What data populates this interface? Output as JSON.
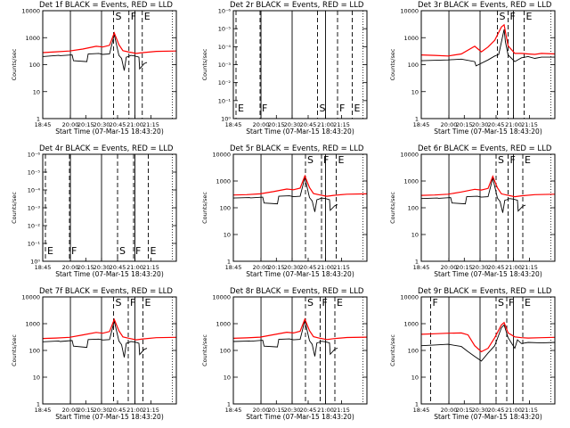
{
  "time_ticks": [
    "18:45",
    "20:00",
    "20:15",
    "20:30",
    "20:45",
    "21:00",
    "21:15"
  ],
  "xlabel": "Start Time (07-Mar-15 18:43:20)",
  "ylabel": "Counts/sec",
  "colors": {
    "events": "#000000",
    "lld": "#ff0000"
  },
  "chart_data": [
    {
      "type": "line",
      "title": "Det 1f BLACK = Events, RED = LLD",
      "scale": "log",
      "yticks": [
        "1",
        "10",
        "100",
        "1000",
        "10000"
      ],
      "ylim": [
        1,
        10000
      ],
      "markers": [
        {
          "label": "S",
          "x": 0.53
        },
        {
          "label": "F",
          "x": 0.645
        },
        {
          "label": "E",
          "x": 0.745
        }
      ],
      "series": [
        {
          "color": "#000000",
          "x": [
            0.0,
            0.12,
            0.13,
            0.22,
            0.23,
            0.33,
            0.34,
            0.42,
            0.45,
            0.5,
            0.535,
            0.57,
            0.59,
            0.61,
            0.625,
            0.64,
            0.66,
            0.69,
            0.72,
            0.725,
            0.76,
            0.78
          ],
          "y": [
            200,
            220,
            215,
            230,
            140,
            130,
            250,
            260,
            240,
            250,
            1300,
            220,
            170,
            60,
            190,
            200,
            220,
            210,
            190,
            70,
            110,
            120
          ]
        },
        {
          "color": "#ff0000",
          "x": [
            0.0,
            0.1,
            0.2,
            0.3,
            0.4,
            0.45,
            0.5,
            0.535,
            0.57,
            0.6,
            0.65,
            0.7,
            0.75,
            0.85,
            1.0
          ],
          "y": [
            280,
            300,
            320,
            380,
            480,
            450,
            520,
            1500,
            550,
            330,
            290,
            260,
            280,
            310,
            320
          ]
        }
      ]
    },
    {
      "type": "line",
      "title": "Det 2r BLACK = Events, RED = LLD",
      "scale": "log-exp",
      "yticks": [
        "10⁰",
        "10⁻¹",
        "10⁻²",
        "10⁻³",
        "10⁻⁴",
        "10⁻⁵",
        "10⁻⁶"
      ],
      "ylim": [
        1,
        1e-06
      ],
      "markers": [
        {
          "label": "E",
          "x": 0.02
        },
        {
          "label": "F",
          "x": 0.2
        },
        {
          "label": "S",
          "x": 0.63
        },
        {
          "label": "F",
          "x": 0.78
        },
        {
          "label": "E",
          "x": 0.89
        }
      ],
      "series": []
    },
    {
      "type": "line",
      "title": "Det 3r BLACK = Events, RED = LLD",
      "scale": "log",
      "yticks": [
        "1",
        "10",
        "100",
        "1000",
        "10000"
      ],
      "ylim": [
        1,
        10000
      ],
      "markers": [
        {
          "label": "S",
          "x": 0.57
        },
        {
          "label": "F",
          "x": 0.65
        },
        {
          "label": "E",
          "x": 0.77
        }
      ],
      "series": [
        {
          "color": "#000000",
          "x": [
            0.0,
            0.2,
            0.3,
            0.4,
            0.41,
            0.5,
            0.55,
            0.58,
            0.62,
            0.63,
            0.65,
            0.7,
            0.75,
            0.8,
            0.85,
            0.9,
            1.0
          ],
          "y": [
            140,
            150,
            160,
            130,
            90,
            150,
            210,
            240,
            2000,
            700,
            230,
            130,
            180,
            200,
            170,
            190,
            190
          ]
        },
        {
          "color": "#ff0000",
          "x": [
            0.0,
            0.1,
            0.2,
            0.3,
            0.4,
            0.45,
            0.5,
            0.55,
            0.6,
            0.62,
            0.65,
            0.7,
            0.75,
            0.8,
            0.85,
            0.9,
            1.0
          ],
          "y": [
            230,
            220,
            210,
            250,
            480,
            300,
            450,
            800,
            2500,
            3000,
            500,
            260,
            260,
            250,
            240,
            260,
            250
          ]
        }
      ]
    },
    {
      "type": "line",
      "title": "Det 4r BLACK = Events, RED = LLD",
      "scale": "log-exp",
      "yticks": [
        "10⁰",
        "10⁻¹",
        "10⁻²",
        "10⁻³",
        "10⁻⁴",
        "10⁻⁵",
        "10⁻⁶"
      ],
      "ylim": [
        1,
        1e-06
      ],
      "markers": [
        {
          "label": "E",
          "x": 0.02
        },
        {
          "label": "F",
          "x": 0.2
        },
        {
          "label": "S",
          "x": 0.56
        },
        {
          "label": "F",
          "x": 0.68
        },
        {
          "label": "E",
          "x": 0.79
        }
      ],
      "series": []
    },
    {
      "type": "line",
      "title": "Det 5r BLACK = Events, RED = LLD",
      "scale": "log",
      "yticks": [
        "1",
        "10",
        "100",
        "1000",
        "10000"
      ],
      "ylim": [
        1,
        10000
      ],
      "markers": [
        {
          "label": "S",
          "x": 0.54
        },
        {
          "label": "F",
          "x": 0.66
        },
        {
          "label": "E",
          "x": 0.77
        }
      ],
      "series": [
        {
          "color": "#000000",
          "x": [
            0.0,
            0.12,
            0.13,
            0.22,
            0.23,
            0.33,
            0.34,
            0.42,
            0.45,
            0.5,
            0.535,
            0.57,
            0.59,
            0.61,
            0.625,
            0.64,
            0.66,
            0.69,
            0.72,
            0.725,
            0.76,
            0.78
          ],
          "y": [
            230,
            240,
            235,
            250,
            150,
            140,
            270,
            280,
            260,
            270,
            1350,
            240,
            180,
            70,
            200,
            210,
            230,
            220,
            200,
            80,
            120,
            130
          ]
        },
        {
          "color": "#ff0000",
          "x": [
            0.0,
            0.1,
            0.2,
            0.3,
            0.4,
            0.45,
            0.5,
            0.535,
            0.57,
            0.6,
            0.65,
            0.7,
            0.75,
            0.85,
            1.0
          ],
          "y": [
            300,
            310,
            330,
            400,
            500,
            470,
            540,
            1550,
            570,
            340,
            300,
            270,
            290,
            320,
            330
          ]
        }
      ]
    },
    {
      "type": "line",
      "title": "Det 6r BLACK = Events, RED = LLD",
      "scale": "log",
      "yticks": [
        "1",
        "10",
        "100",
        "1000",
        "10000"
      ],
      "ylim": [
        1,
        10000
      ],
      "markers": [
        {
          "label": "S",
          "x": 0.56
        },
        {
          "label": "F",
          "x": 0.65
        },
        {
          "label": "E",
          "x": 0.76
        }
      ],
      "series": [
        {
          "color": "#000000",
          "x": [
            0.0,
            0.12,
            0.13,
            0.22,
            0.23,
            0.33,
            0.34,
            0.42,
            0.45,
            0.5,
            0.535,
            0.57,
            0.59,
            0.61,
            0.625,
            0.64,
            0.66,
            0.69,
            0.72,
            0.725,
            0.76,
            0.78
          ],
          "y": [
            220,
            230,
            225,
            240,
            150,
            140,
            260,
            270,
            250,
            260,
            1300,
            230,
            170,
            65,
            190,
            200,
            220,
            210,
            190,
            75,
            115,
            125
          ]
        },
        {
          "color": "#ff0000",
          "x": [
            0.0,
            0.1,
            0.2,
            0.3,
            0.4,
            0.45,
            0.5,
            0.535,
            0.57,
            0.6,
            0.65,
            0.7,
            0.75,
            0.85,
            1.0
          ],
          "y": [
            290,
            300,
            320,
            390,
            490,
            460,
            530,
            1500,
            560,
            330,
            290,
            260,
            280,
            310,
            320
          ]
        }
      ]
    },
    {
      "type": "line",
      "title": "Det 7f BLACK = Events, RED = LLD",
      "scale": "log",
      "yticks": [
        "1",
        "10",
        "100",
        "1000",
        "10000"
      ],
      "ylim": [
        1,
        10000
      ],
      "markers": [
        {
          "label": "S",
          "x": 0.53
        },
        {
          "label": "F",
          "x": 0.64
        },
        {
          "label": "E",
          "x": 0.75
        }
      ],
      "series": [
        {
          "color": "#000000",
          "x": [
            0.0,
            0.12,
            0.13,
            0.22,
            0.23,
            0.33,
            0.34,
            0.42,
            0.45,
            0.5,
            0.535,
            0.57,
            0.59,
            0.61,
            0.625,
            0.64,
            0.66,
            0.69,
            0.72,
            0.725,
            0.76,
            0.78
          ],
          "y": [
            210,
            225,
            215,
            235,
            145,
            130,
            255,
            265,
            245,
            255,
            1250,
            225,
            165,
            55,
            185,
            195,
            215,
            205,
            185,
            70,
            110,
            120
          ]
        },
        {
          "color": "#ff0000",
          "x": [
            0.0,
            0.1,
            0.2,
            0.3,
            0.4,
            0.45,
            0.5,
            0.535,
            0.57,
            0.6,
            0.65,
            0.7,
            0.75,
            0.85,
            1.0
          ],
          "y": [
            280,
            290,
            310,
            380,
            470,
            440,
            510,
            1450,
            540,
            320,
            280,
            250,
            270,
            300,
            310
          ]
        }
      ]
    },
    {
      "type": "line",
      "title": "Det 8r BLACK = Events, RED = LLD",
      "scale": "log",
      "yticks": [
        "1",
        "10",
        "100",
        "1000",
        "10000"
      ],
      "ylim": [
        1,
        10000
      ],
      "markers": [
        {
          "label": "S",
          "x": 0.54
        },
        {
          "label": "F",
          "x": 0.65
        },
        {
          "label": "E",
          "x": 0.76
        }
      ],
      "series": [
        {
          "color": "#000000",
          "x": [
            0.0,
            0.12,
            0.13,
            0.22,
            0.23,
            0.33,
            0.34,
            0.42,
            0.45,
            0.5,
            0.535,
            0.57,
            0.59,
            0.61,
            0.625,
            0.64,
            0.66,
            0.69,
            0.72,
            0.725,
            0.76,
            0.78
          ],
          "y": [
            215,
            225,
            220,
            240,
            145,
            135,
            260,
            270,
            250,
            260,
            1300,
            230,
            170,
            60,
            190,
            200,
            220,
            210,
            190,
            72,
            112,
            122
          ]
        },
        {
          "color": "#ff0000",
          "x": [
            0.0,
            0.1,
            0.2,
            0.3,
            0.4,
            0.45,
            0.5,
            0.535,
            0.57,
            0.6,
            0.65,
            0.7,
            0.75,
            0.85,
            1.0
          ],
          "y": [
            285,
            295,
            315,
            385,
            480,
            450,
            520,
            1480,
            550,
            325,
            285,
            255,
            275,
            305,
            315
          ]
        }
      ]
    },
    {
      "type": "line",
      "title": "Det 9r BLACK = Events, RED = LLD",
      "scale": "log",
      "yticks": [
        "1",
        "10",
        "100",
        "1000",
        "10000"
      ],
      "ylim": [
        1,
        10000
      ],
      "markers": [
        {
          "label": "F",
          "x": 0.07
        },
        {
          "label": "S",
          "x": 0.56
        },
        {
          "label": "F",
          "x": 0.64
        },
        {
          "label": "E",
          "x": 0.76
        }
      ],
      "series": [
        {
          "color": "#000000",
          "x": [
            0.0,
            0.1,
            0.2,
            0.3,
            0.35,
            0.4,
            0.45,
            0.5,
            0.55,
            0.6,
            0.62,
            0.65,
            0.7,
            0.72,
            0.75,
            0.8,
            0.9,
            1.0
          ],
          "y": [
            150,
            160,
            170,
            140,
            90,
            60,
            40,
            80,
            150,
            700,
            900,
            300,
            120,
            250,
            180,
            200,
            190,
            200
          ]
        },
        {
          "color": "#ff0000",
          "x": [
            0.0,
            0.1,
            0.2,
            0.3,
            0.35,
            0.4,
            0.45,
            0.5,
            0.55,
            0.6,
            0.62,
            0.65,
            0.7,
            0.75,
            0.8,
            0.9,
            1.0
          ],
          "y": [
            400,
            420,
            440,
            450,
            380,
            150,
            90,
            120,
            300,
            900,
            1100,
            450,
            320,
            300,
            290,
            300,
            310
          ]
        }
      ]
    }
  ]
}
